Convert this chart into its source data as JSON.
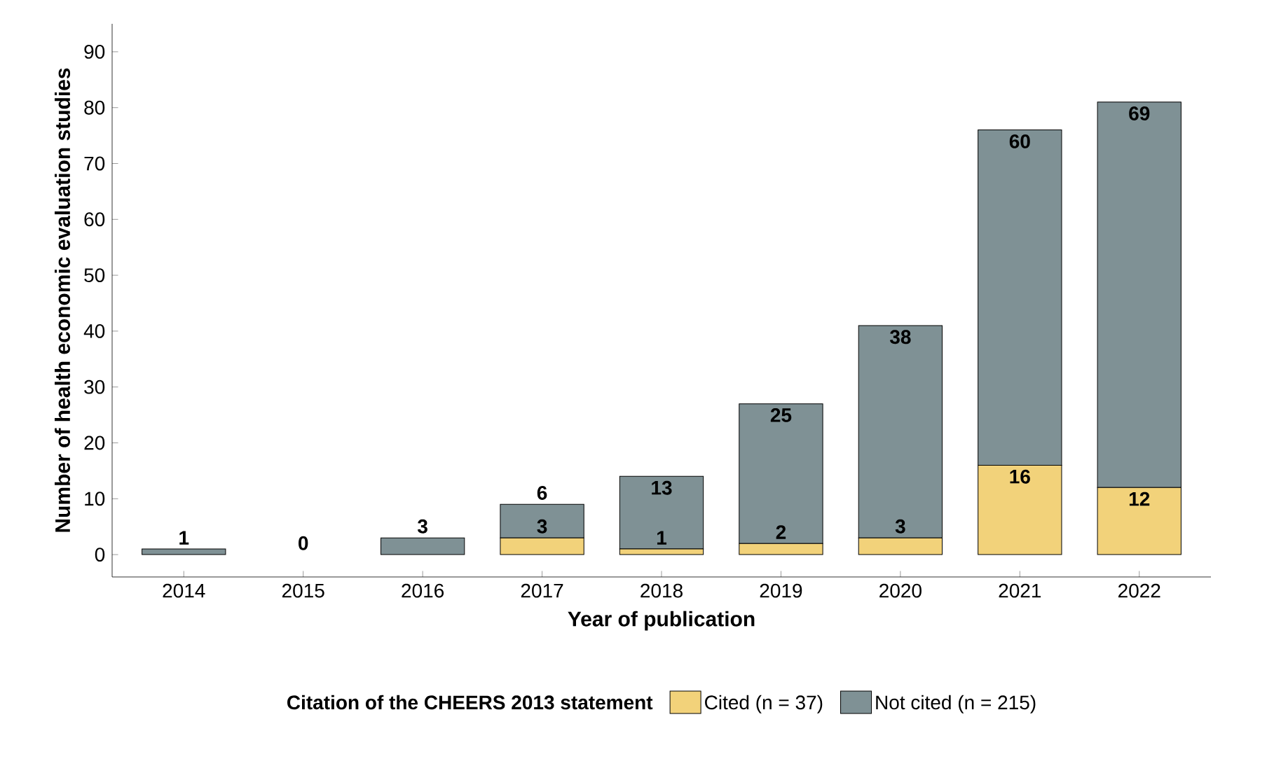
{
  "chart_data": {
    "type": "bar",
    "stacked": true,
    "xlabel": "Year of publication",
    "ylabel": "Number of health economic evaluation studies",
    "legend_title": "Citation of the CHEERS 2013 statement",
    "categories": [
      "2014",
      "2015",
      "2016",
      "2017",
      "2018",
      "2019",
      "2020",
      "2021",
      "2022"
    ],
    "series": [
      {
        "name": "Cited (n = 37)",
        "color": "#f2d27a",
        "values": [
          0,
          0,
          0,
          3,
          1,
          2,
          3,
          16,
          12
        ],
        "value_labels": [
          null,
          null,
          null,
          "3",
          "1",
          "2",
          "3",
          "16",
          "12"
        ]
      },
      {
        "name": "Not cited (n = 215)",
        "color": "#7f9195",
        "values": [
          1,
          0,
          3,
          6,
          13,
          25,
          38,
          60,
          69
        ],
        "value_labels": [
          "1",
          "0",
          "3",
          "6",
          "13",
          "25",
          "38",
          "60",
          "69"
        ]
      }
    ],
    "ylim": [
      -4,
      95
    ],
    "yticks": [
      0,
      10,
      20,
      30,
      40,
      50,
      60,
      70,
      80,
      90
    ],
    "grid": false,
    "legend": "bottom"
  }
}
